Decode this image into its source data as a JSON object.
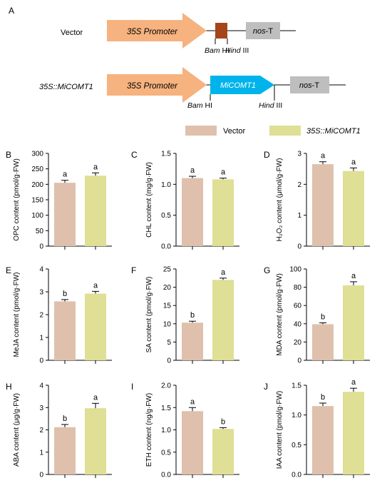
{
  "panel_a": {
    "letter": "A",
    "vector": {
      "label": "Vector",
      "promoter": "35S Promoter",
      "terminator_italic": "nos",
      "terminator_rest": "-T",
      "site1_italic": "Bam",
      "site1_rest": " HI",
      "site2_italic": "Hind",
      "site2_rest": " III"
    },
    "construct": {
      "label": "35S::MiCOMT1",
      "promoter": "35S Promoter",
      "gene": "MiCOMT1",
      "terminator_italic": "nos",
      "terminator_rest": "-T",
      "site1_italic": "Bam",
      "site1_rest": " HI",
      "site2_italic": "Hind",
      "site2_rest": " III"
    },
    "colors": {
      "promoter": "#f6b27f",
      "gene": "#00b4eb",
      "terminator": "#bebebe",
      "insert": "#a5451a"
    }
  },
  "legend": [
    {
      "label": "Vector",
      "color": "#dfc0ac",
      "italic": false
    },
    {
      "label": "35S::MiCOMT1",
      "color": "#dfdf95",
      "italic": true
    }
  ],
  "chart_data": [
    {
      "letter": "B",
      "type": "bar",
      "ylabel": "OPC content (pmol/g·FW)",
      "ylim": [
        0,
        300
      ],
      "ticks": [
        0,
        50,
        100,
        150,
        200,
        250,
        300
      ],
      "categories": [
        "Vector",
        "35S::MiCOMT1"
      ],
      "values": [
        205,
        228
      ],
      "errors": [
        8,
        9
      ],
      "letters": [
        "a",
        "a"
      ]
    },
    {
      "letter": "C",
      "type": "bar",
      "ylabel": "CHL content (mg/g·FW)",
      "ylim": [
        0,
        1.5
      ],
      "ticks": [
        0.0,
        0.5,
        1.0,
        1.5
      ],
      "categories": [
        "Vector",
        "35S::MiCOMT1"
      ],
      "values": [
        1.1,
        1.08
      ],
      "errors": [
        0.03,
        0.02
      ],
      "letters": [
        "a",
        "a"
      ]
    },
    {
      "letter": "D",
      "type": "bar",
      "ylabel": "H₂O₂ content (μmol/g·FW)",
      "ylim": [
        0,
        3
      ],
      "ticks": [
        0,
        1,
        2,
        3
      ],
      "categories": [
        "Vector",
        "35S::MiCOMT1"
      ],
      "values": [
        2.65,
        2.43
      ],
      "errors": [
        0.08,
        0.1
      ],
      "letters": [
        "a",
        "a"
      ]
    },
    {
      "letter": "E",
      "type": "bar",
      "ylabel": "MeJA content (pmol/g·FW)",
      "ylim": [
        0,
        4
      ],
      "ticks": [
        0,
        1,
        2,
        3,
        4
      ],
      "categories": [
        "Vector",
        "35S::MiCOMT1"
      ],
      "values": [
        2.58,
        2.92
      ],
      "errors": [
        0.08,
        0.1
      ],
      "letters": [
        "b",
        "a"
      ]
    },
    {
      "letter": "F",
      "type": "bar",
      "ylabel": "SA content (pmol/g·FW)",
      "ylim": [
        0,
        25
      ],
      "ticks": [
        0,
        5,
        10,
        15,
        20,
        25
      ],
      "categories": [
        "Vector",
        "35S::MiCOMT1"
      ],
      "values": [
        10.3,
        22
      ],
      "errors": [
        0.4,
        0.5
      ],
      "letters": [
        "b",
        "a"
      ]
    },
    {
      "letter": "G",
      "type": "bar",
      "ylabel": "MDA content (pmol/g·FW)",
      "ylim": [
        0,
        100
      ],
      "ticks": [
        0,
        20,
        40,
        60,
        80,
        100
      ],
      "categories": [
        "Vector",
        "35S::MiCOMT1"
      ],
      "values": [
        39.5,
        82
      ],
      "errors": [
        1.5,
        4
      ],
      "letters": [
        "b",
        "a"
      ]
    },
    {
      "letter": "H",
      "type": "bar",
      "ylabel": "ABA content (μg/g·FW)",
      "ylim": [
        0,
        4
      ],
      "ticks": [
        0,
        1,
        2,
        3,
        4
      ],
      "categories": [
        "Vector",
        "35S::MiCOMT1"
      ],
      "values": [
        2.12,
        2.97
      ],
      "errors": [
        0.12,
        0.22
      ],
      "letters": [
        "b",
        "a"
      ]
    },
    {
      "letter": "I",
      "type": "bar",
      "ylabel": "ETH content (ng/g·FW)",
      "ylim": [
        0,
        2
      ],
      "ticks": [
        0.0,
        0.5,
        1.0,
        1.5,
        2.0
      ],
      "categories": [
        "Vector",
        "35S::MiCOMT1"
      ],
      "values": [
        1.42,
        1.02
      ],
      "errors": [
        0.08,
        0.03
      ],
      "letters": [
        "a",
        "b"
      ]
    },
    {
      "letter": "J",
      "type": "bar",
      "ylabel": "IAA content (pmol/g·FW)",
      "ylim": [
        0,
        1.5
      ],
      "ticks": [
        0.0,
        0.5,
        1.0,
        1.5
      ],
      "categories": [
        "Vector",
        "35S::MiCOMT1"
      ],
      "values": [
        1.15,
        1.39
      ],
      "errors": [
        0.05,
        0.06
      ],
      "letters": [
        "b",
        "a"
      ]
    }
  ]
}
